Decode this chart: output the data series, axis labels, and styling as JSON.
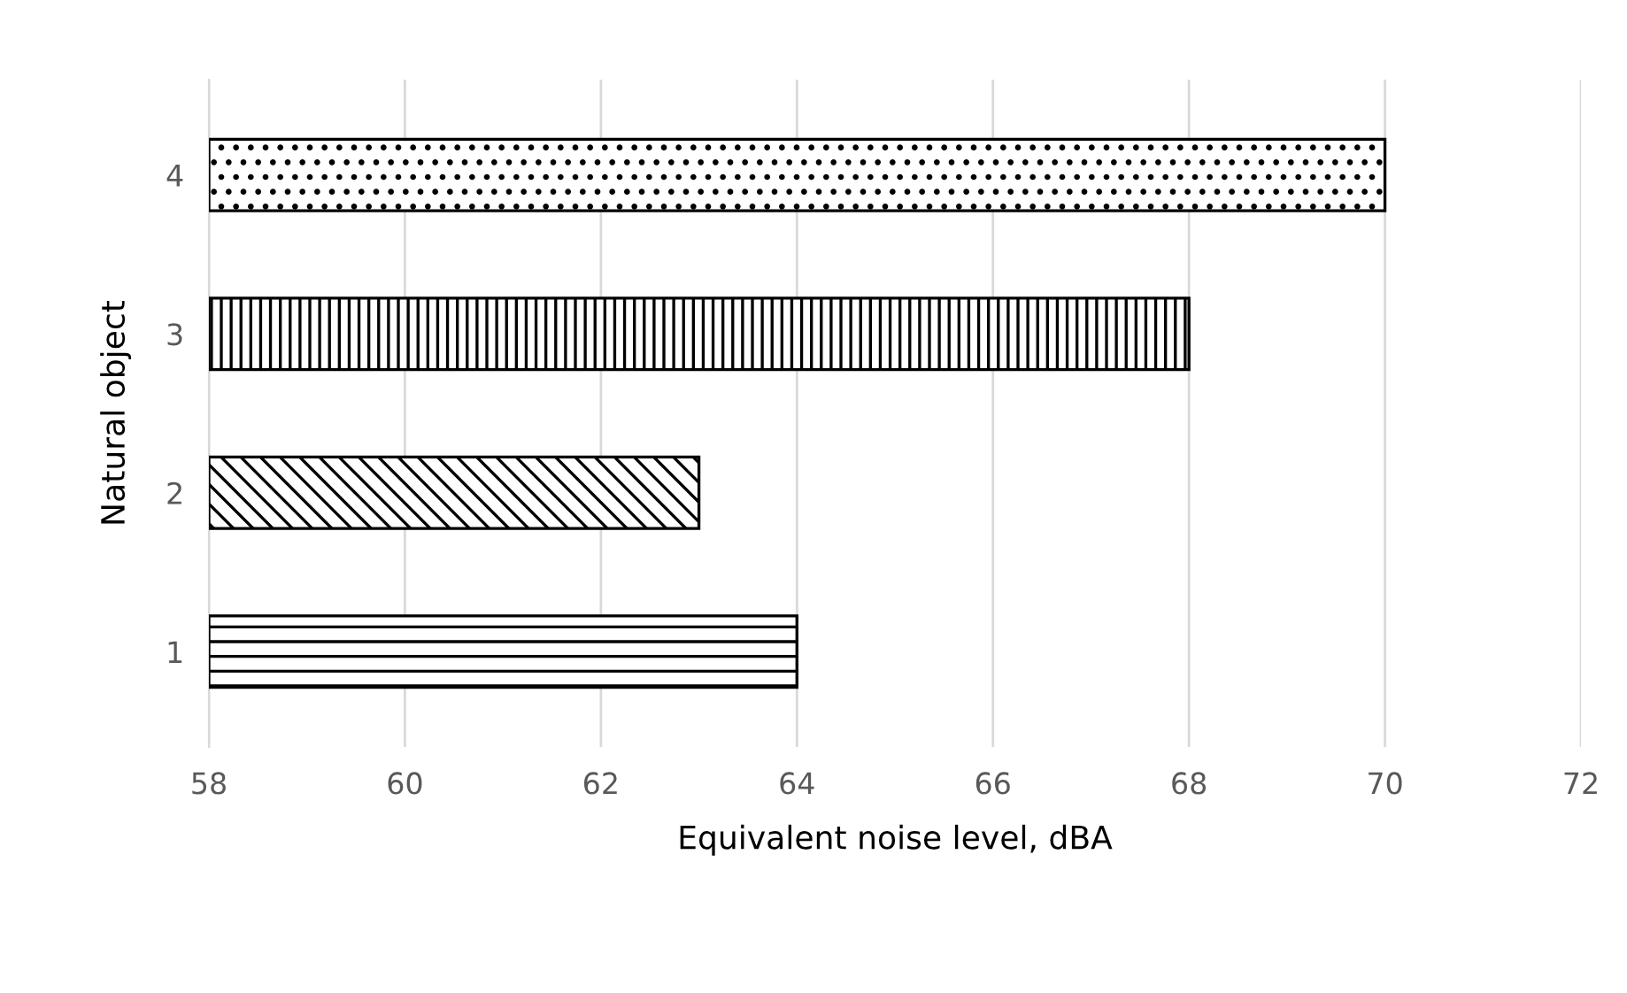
{
  "chart_data": {
    "type": "bar",
    "orientation": "horizontal",
    "xlabel": "Equivalent noise level, dBA",
    "ylabel": "Natural object",
    "categories": [
      "4",
      "3",
      "2",
      "1"
    ],
    "values": [
      70,
      68,
      63,
      64
    ],
    "colors": [
      "#000000",
      "#000000",
      "#000000",
      "#000000"
    ],
    "xlim": [
      58,
      72
    ],
    "xticks": [
      58,
      60,
      62,
      64,
      66,
      68,
      70,
      72
    ],
    "grid": "x"
  }
}
